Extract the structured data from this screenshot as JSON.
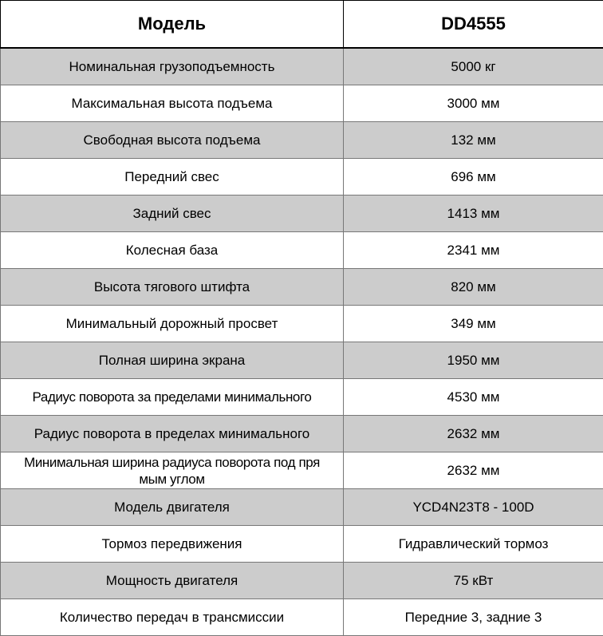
{
  "header": {
    "model_label": "Модель",
    "model_value": "DD4555"
  },
  "colors": {
    "shaded_row": "#cccccc",
    "border": "#777777"
  },
  "rows": [
    {
      "label": "Номинальная грузоподъемность",
      "value": "5000 кг"
    },
    {
      "label": "Максимальная высота подъема",
      "value": "3000 мм"
    },
    {
      "label": "Свободная высота подъема",
      "value": "132 мм"
    },
    {
      "label": "Передний свес",
      "value": "696 мм"
    },
    {
      "label": "Задний свес",
      "value": "1413 мм"
    },
    {
      "label": "Колесная база",
      "value": "2341 мм"
    },
    {
      "label": "Высота тягового штифта",
      "value": "820 мм"
    },
    {
      "label": "Минимальный дорожный просвет",
      "value": "349 мм"
    },
    {
      "label": "Полная ширина экрана",
      "value": "1950 мм"
    },
    {
      "label": "Радиус поворота за пределами минимального",
      "value": "4530 мм"
    },
    {
      "label": "Радиус поворота в пределах минимального",
      "value": "2632 мм"
    },
    {
      "label": "Минимальная ширина радиуса поворота под пря\nмым углом",
      "value": "2632 мм"
    },
    {
      "label": "Модель двигателя",
      "value": "YCD4N23T8 - 100D"
    },
    {
      "label": "Тормоз передвижения",
      "value": "Гидравлический тормоз"
    },
    {
      "label": "Мощность двигателя",
      "value": "75 кВт"
    },
    {
      "label": "Количество передач в трансмиссии",
      "value": "Передние 3, задние 3"
    }
  ]
}
